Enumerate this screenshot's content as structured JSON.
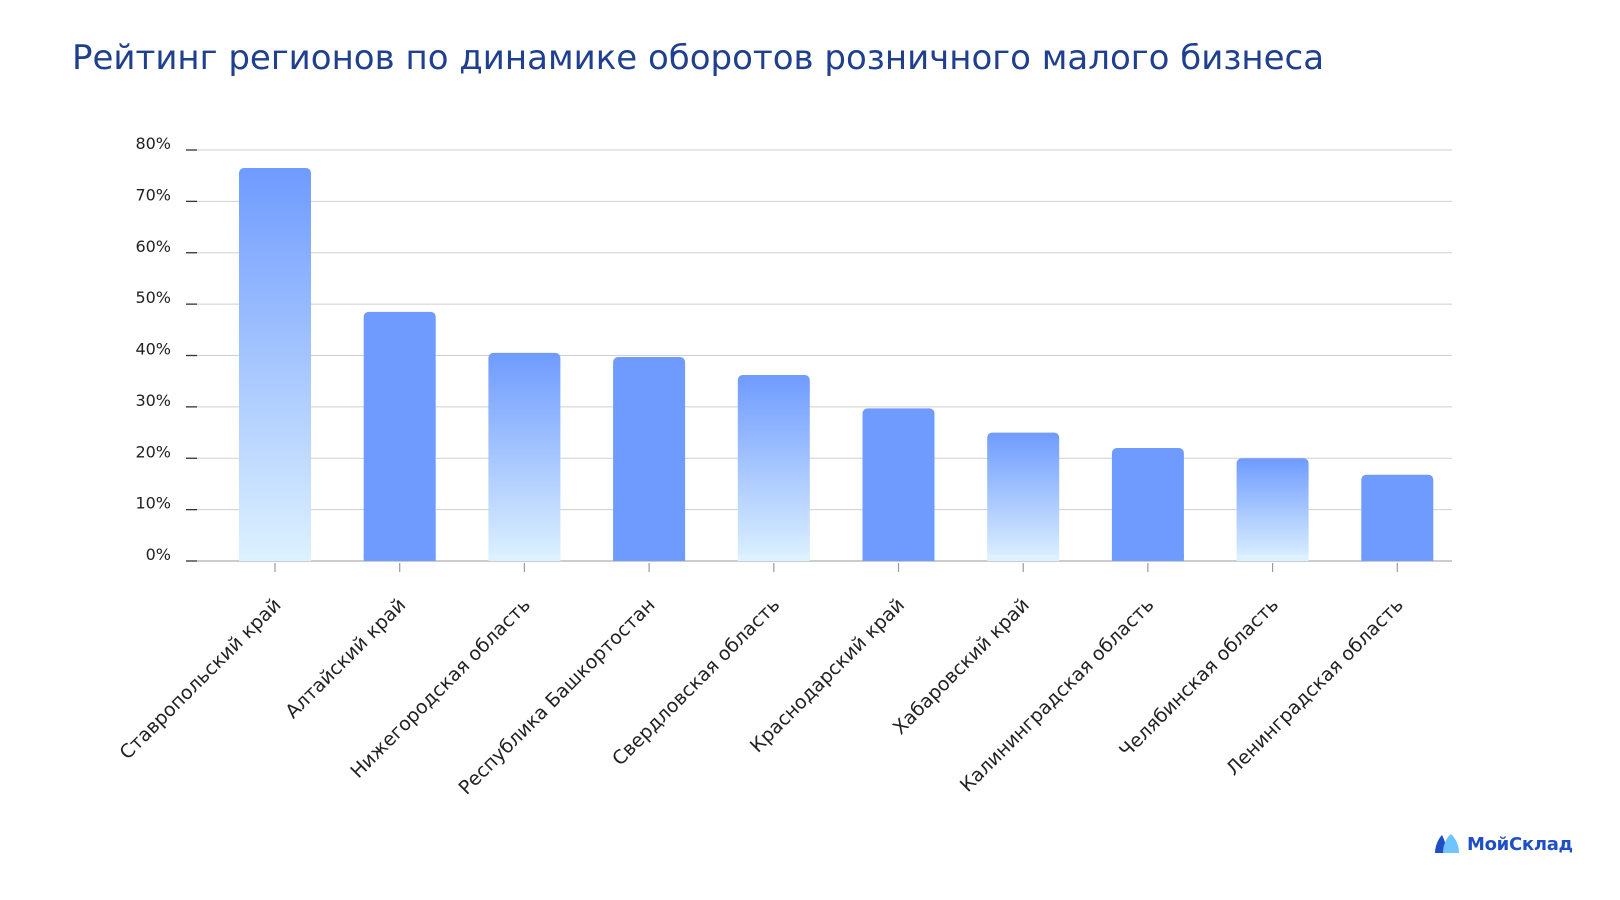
{
  "title": "Рейтинг регионов по динамике оборотов розничного малого бизнеса",
  "brand": {
    "name": "МойСклад",
    "icon": "moysklad-logo-icon"
  },
  "colors": {
    "title": "#1f3f8f",
    "bar_solid": "#6f9bff",
    "bar_gradient_top": "#6f9bff",
    "bar_gradient_bottom": "#ddf1ff",
    "grid": "#cfcfcf",
    "brand": "#1f4fc4"
  },
  "chart_data": {
    "type": "bar",
    "title": "Рейтинг регионов по динамике оборотов розничного малого бизнеса",
    "xlabel": "",
    "ylabel": "",
    "ylim": [
      0,
      80
    ],
    "y_unit": "%",
    "yticks": [
      0,
      10,
      20,
      30,
      40,
      50,
      60,
      70,
      80
    ],
    "ytick_labels": [
      "0%",
      "10%",
      "20%",
      "30%",
      "40%",
      "50%",
      "60%",
      "70%",
      "80%"
    ],
    "grid": true,
    "legend": "none",
    "categories": [
      "Ставропольский край",
      "Алтайский край",
      "Нижегородская область",
      "Республика Башкортостан",
      "Свердловская область",
      "Краснодарский край",
      "Хабаровский край",
      "Калининградская область",
      "Челябинская область",
      "Ленинградская область"
    ],
    "values": [
      76.5,
      48.5,
      40.5,
      39.7,
      36.2,
      29.7,
      25.0,
      22.0,
      20.0,
      16.8
    ],
    "bar_styles": [
      "gradient",
      "solid",
      "gradient",
      "solid",
      "gradient",
      "solid",
      "gradient",
      "solid",
      "gradient",
      "solid"
    ]
  }
}
